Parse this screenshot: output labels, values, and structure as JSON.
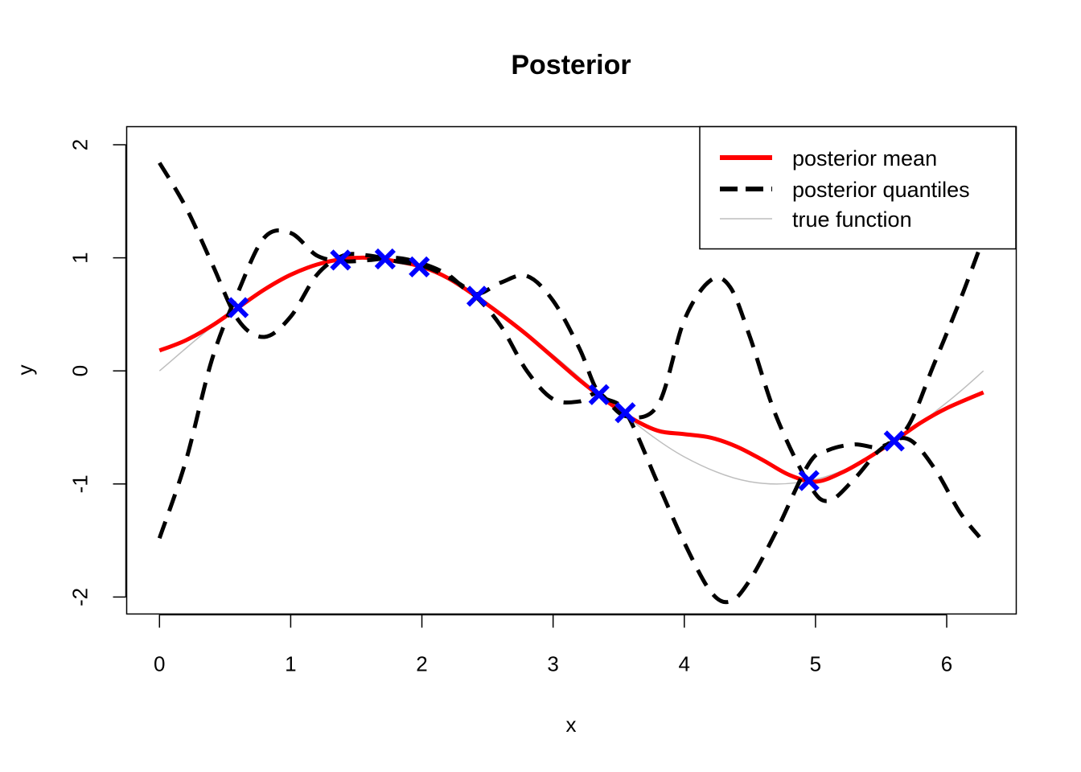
{
  "chart_data": {
    "type": "line",
    "title": "Posterior",
    "xlabel": "x",
    "ylabel": "y",
    "xlim": [
      -0.25,
      6.53
    ],
    "ylim": [
      -2.15,
      2.16
    ],
    "xticks": [
      0,
      1,
      2,
      3,
      4,
      5,
      6
    ],
    "xtick_labels": [
      "0",
      "1",
      "2",
      "3",
      "4",
      "5",
      "6"
    ],
    "yticks": [
      -2,
      -1,
      0,
      1,
      2
    ],
    "ytick_labels": [
      "-2",
      "-1",
      "0",
      "1",
      "2"
    ],
    "grid": false,
    "legend_position": "top-right",
    "legend": [
      {
        "label": "posterior mean",
        "color": "#ff0000",
        "style": "solid"
      },
      {
        "label": "posterior quantiles",
        "color": "#000000",
        "style": "dashed"
      },
      {
        "label": "true function",
        "color": "#bebebe",
        "style": "solid"
      }
    ],
    "series": [
      {
        "name": "true function",
        "color": "#bebebe",
        "x": [
          0,
          0.5,
          1.0,
          1.5,
          2.0,
          2.5,
          3.0,
          3.5,
          4.0,
          4.5,
          5.0,
          5.5,
          6.0,
          6.28
        ],
        "y": [
          0,
          0.48,
          0.84,
          1.0,
          0.91,
          0.6,
          0.14,
          -0.35,
          -0.76,
          -0.98,
          -0.96,
          -0.71,
          -0.28,
          0
        ]
      },
      {
        "name": "posterior mean",
        "color": "#ff0000",
        "x": [
          0,
          0.2,
          0.4,
          0.6,
          0.8,
          1.0,
          1.2,
          1.4,
          1.6,
          1.8,
          2.0,
          2.2,
          2.4,
          2.6,
          2.8,
          3.0,
          3.2,
          3.4,
          3.6,
          3.8,
          4.0,
          4.2,
          4.4,
          4.6,
          4.8,
          5.0,
          5.2,
          5.4,
          5.6,
          5.8,
          6.0,
          6.28
        ],
        "y": [
          0.18,
          0.27,
          0.4,
          0.56,
          0.72,
          0.85,
          0.94,
          0.99,
          1.0,
          0.97,
          0.92,
          0.82,
          0.67,
          0.5,
          0.32,
          0.12,
          -0.08,
          -0.26,
          -0.42,
          -0.53,
          -0.56,
          -0.59,
          -0.67,
          -0.79,
          -0.92,
          -0.98,
          -0.9,
          -0.77,
          -0.62,
          -0.46,
          -0.33,
          -0.19
        ]
      },
      {
        "name": "",
        "color": "#000000",
        "x": [
          0,
          0.2,
          0.4,
          0.6,
          0.8,
          1.0,
          1.2,
          1.4,
          1.6,
          1.8,
          2.0,
          2.2,
          2.4,
          2.6,
          2.8,
          3.0,
          3.2,
          3.35,
          3.55,
          3.8,
          4.0,
          4.2,
          4.35,
          4.5,
          4.7,
          4.95,
          5.1,
          5.3,
          5.5,
          5.7,
          5.9,
          6.1,
          6.25
        ],
        "y": [
          1.84,
          1.45,
          0.95,
          0.45,
          0.3,
          0.48,
          0.85,
          1.02,
          1.02,
          0.97,
          0.93,
          0.83,
          0.67,
          0.4,
          0.0,
          -0.25,
          -0.27,
          -0.2,
          -0.4,
          -0.3,
          0.45,
          0.8,
          0.74,
          0.3,
          -0.4,
          -1.0,
          -1.15,
          -0.95,
          -0.69,
          -0.6,
          -0.85,
          -1.25,
          -1.47
        ]
      },
      {
        "name": "",
        "color": "#000000",
        "x": [
          0,
          0.2,
          0.4,
          0.6,
          0.8,
          1.0,
          1.2,
          1.4,
          1.6,
          1.8,
          2.0,
          2.2,
          2.4,
          2.6,
          2.8,
          3.0,
          3.2,
          3.35,
          3.55,
          3.8,
          4.0,
          4.2,
          4.35,
          4.5,
          4.7,
          4.95,
          5.1,
          5.3,
          5.5,
          5.7,
          5.9,
          6.1,
          6.25
        ],
        "y": [
          -1.48,
          -0.8,
          0.1,
          0.7,
          1.18,
          1.22,
          1.02,
          0.97,
          0.98,
          1.0,
          0.95,
          0.85,
          0.68,
          0.78,
          0.84,
          0.62,
          0.2,
          -0.2,
          -0.36,
          -1.0,
          -1.52,
          -1.95,
          -2.04,
          -1.85,
          -1.42,
          -0.82,
          -0.7,
          -0.65,
          -0.67,
          -0.5,
          0.05,
          0.62,
          1.08
        ]
      }
    ],
    "points": {
      "name": "",
      "color": "#0000ff",
      "marker": "x",
      "x": [
        0.6,
        1.38,
        1.72,
        1.98,
        2.42,
        3.35,
        3.55,
        4.95,
        5.6
      ],
      "y": [
        0.56,
        0.98,
        0.99,
        0.92,
        0.66,
        -0.21,
        -0.37,
        -0.97,
        -0.62
      ]
    }
  }
}
